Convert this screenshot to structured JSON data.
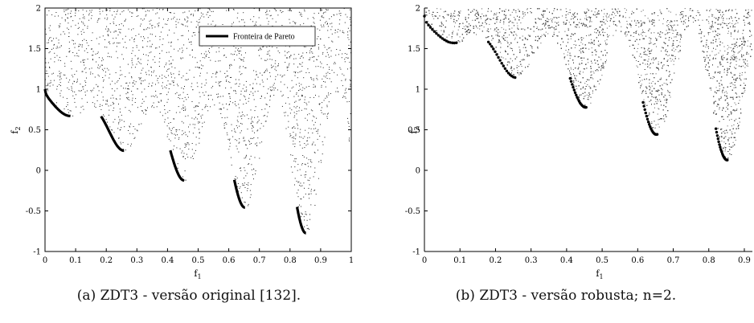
{
  "chart_data": [
    {
      "type": "scatter",
      "panel": "a",
      "caption": "(a) ZDT3 - versão original [132].",
      "xlabel": "f",
      "xlabel_sub": "1",
      "ylabel": "f",
      "ylabel_sub": "2",
      "xlim": [
        0,
        1
      ],
      "ylim": [
        -1,
        2
      ],
      "xticks": [
        "0",
        "0.1",
        "0.2",
        "0.3",
        "0.4",
        "0.5",
        "0.6",
        "0.7",
        "0.8",
        "0.9",
        "1"
      ],
      "yticks": [
        "-1",
        "-0.5",
        "0",
        "0.5",
        "1",
        "1.5",
        "2"
      ],
      "grid": false,
      "legend": {
        "placement": "top-right",
        "entries": [
          "Fronteira de Pareto"
        ]
      },
      "series": [
        {
          "name": "Fronteira de Pareto",
          "segments": [
            [
              0.0,
              0.083
            ],
            [
              0.183,
              0.258
            ],
            [
              0.409,
              0.454
            ],
            [
              0.618,
              0.653
            ],
            [
              0.823,
              0.852
            ]
          ]
        }
      ]
    },
    {
      "type": "scatter",
      "panel": "b",
      "caption": "(b) ZDT3 - versão robusta; n=2.",
      "xlabel": "f",
      "xlabel_sub": "1",
      "ylabel": "f",
      "ylabel_sub": "2",
      "xlim": [
        0,
        1
      ],
      "ylim": [
        -1,
        2
      ],
      "xticks": [
        "0",
        "0.1",
        "0.2",
        "0.3",
        "0.4",
        "0.5",
        "0.6",
        "0.7",
        "0.8",
        "0.9"
      ],
      "yticks": [
        "-1",
        "-0.5",
        "0",
        "0.5",
        "1",
        "1.5",
        "2"
      ],
      "grid": false,
      "front_offset": 0.9,
      "series": [
        {
          "segments": [
            [
              0.0,
              0.09
            ],
            [
              0.18,
              0.255
            ],
            [
              0.41,
              0.455
            ],
            [
              0.615,
              0.655
            ],
            [
              0.82,
              0.852
            ]
          ]
        }
      ]
    }
  ]
}
